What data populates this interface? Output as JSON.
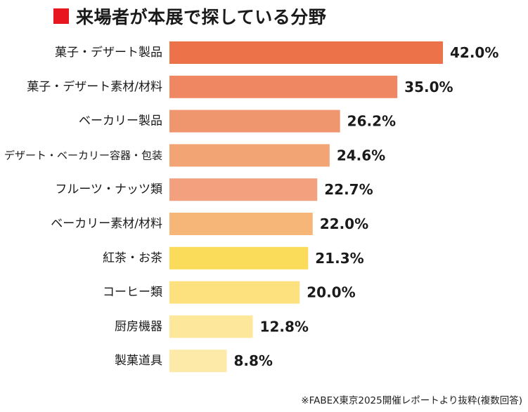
{
  "title": "来場者が本展で探している分野",
  "source": "※FABEX東京2025開催レポートより抜粋(複数回答)",
  "colors": {
    "title_square": "#e8161e",
    "text": "#1a1a1a"
  },
  "chart_data": {
    "type": "bar",
    "orientation": "horizontal",
    "title": "来場者が本展で探している分野",
    "xlabel": "",
    "ylabel": "",
    "xlim": [
      0,
      42
    ],
    "grid": false,
    "unit": "%",
    "categories": [
      "菓子・デザート製品",
      "菓子・デザート素材/材料",
      "ベーカリー製品",
      "デザート・ベーカリー容器・包装",
      "フルーツ・ナッツ類",
      "ベーカリー素材/材料",
      "紅茶・お茶",
      "コーヒー類",
      "厨房機器",
      "製菓道具"
    ],
    "values": [
      42.0,
      35.0,
      26.2,
      24.6,
      22.7,
      22.0,
      21.3,
      20.0,
      12.8,
      8.8
    ],
    "value_labels": [
      "42.0%",
      "35.0%",
      "26.2%",
      "24.6%",
      "22.7%",
      "22.0%",
      "21.3%",
      "20.0%",
      "12.8%",
      "8.8%"
    ],
    "bar_colors": [
      "#ec7249",
      "#ef8862",
      "#f0966f",
      "#f2a474",
      "#f2a07e",
      "#f5b677",
      "#fadc5a",
      "#fde17f",
      "#fde79a",
      "#fdeaa8"
    ]
  }
}
